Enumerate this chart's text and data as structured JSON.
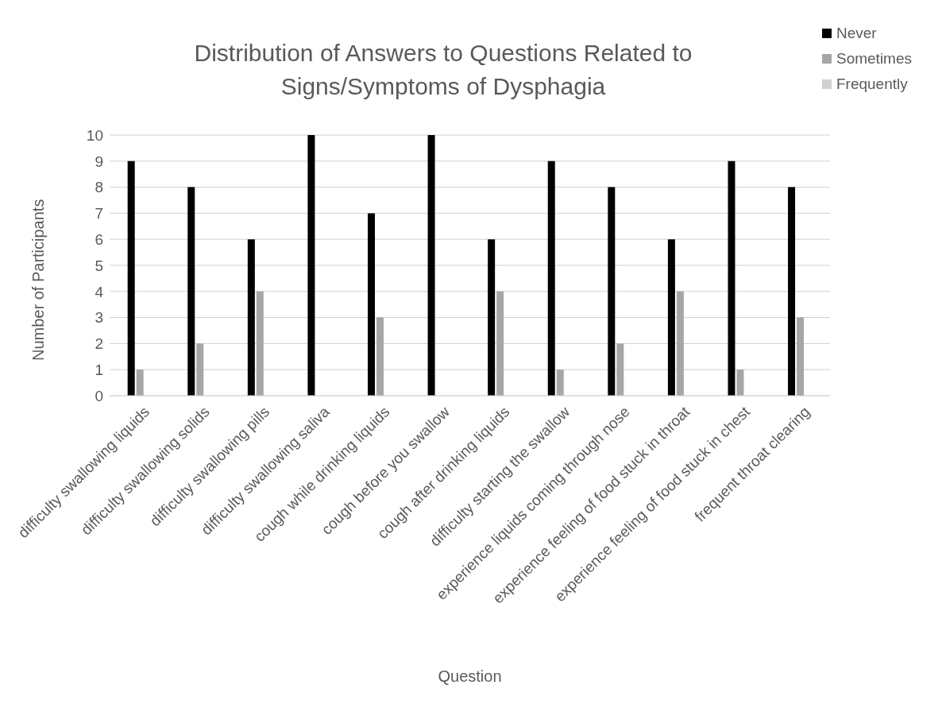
{
  "chart_data": {
    "type": "bar",
    "title": "Distribution of Answers to Questions Related to Signs/Symptoms of Dysphagia",
    "xlabel": "Question",
    "ylabel": "Number of Participants",
    "categories": [
      "difficulty swallowing liquids",
      "difficulty swallowing solids",
      "difficulty swallowing pills",
      "difficulty swallowing saliva",
      "cough while drinking liquids",
      "cough before you swallow",
      "cough after drinking liquids",
      "difficulty starting the swallow",
      "experience liquids coming through nose",
      "experience feeling of food stuck in throat",
      "experience feeling of food stuck in chest",
      "frequent throat clearing"
    ],
    "series": [
      {
        "name": "Never",
        "color": "#000000",
        "values": [
          9,
          8,
          6,
          10,
          7,
          10,
          6,
          9,
          8,
          6,
          9,
          8
        ]
      },
      {
        "name": "Sometimes",
        "color": "#a6a6a6",
        "values": [
          1,
          2,
          4,
          0,
          3,
          0,
          4,
          1,
          2,
          4,
          1,
          3
        ]
      },
      {
        "name": "Frequently",
        "color": "#d0d0d0",
        "values": [
          0,
          0,
          0,
          0,
          0,
          0,
          0,
          0,
          0,
          0,
          0,
          0
        ]
      }
    ],
    "ylim": [
      0,
      10
    ],
    "yticks": [
      0,
      1,
      2,
      3,
      4,
      5,
      6,
      7,
      8,
      9,
      10
    ],
    "grid": "y",
    "legend": "top right"
  }
}
